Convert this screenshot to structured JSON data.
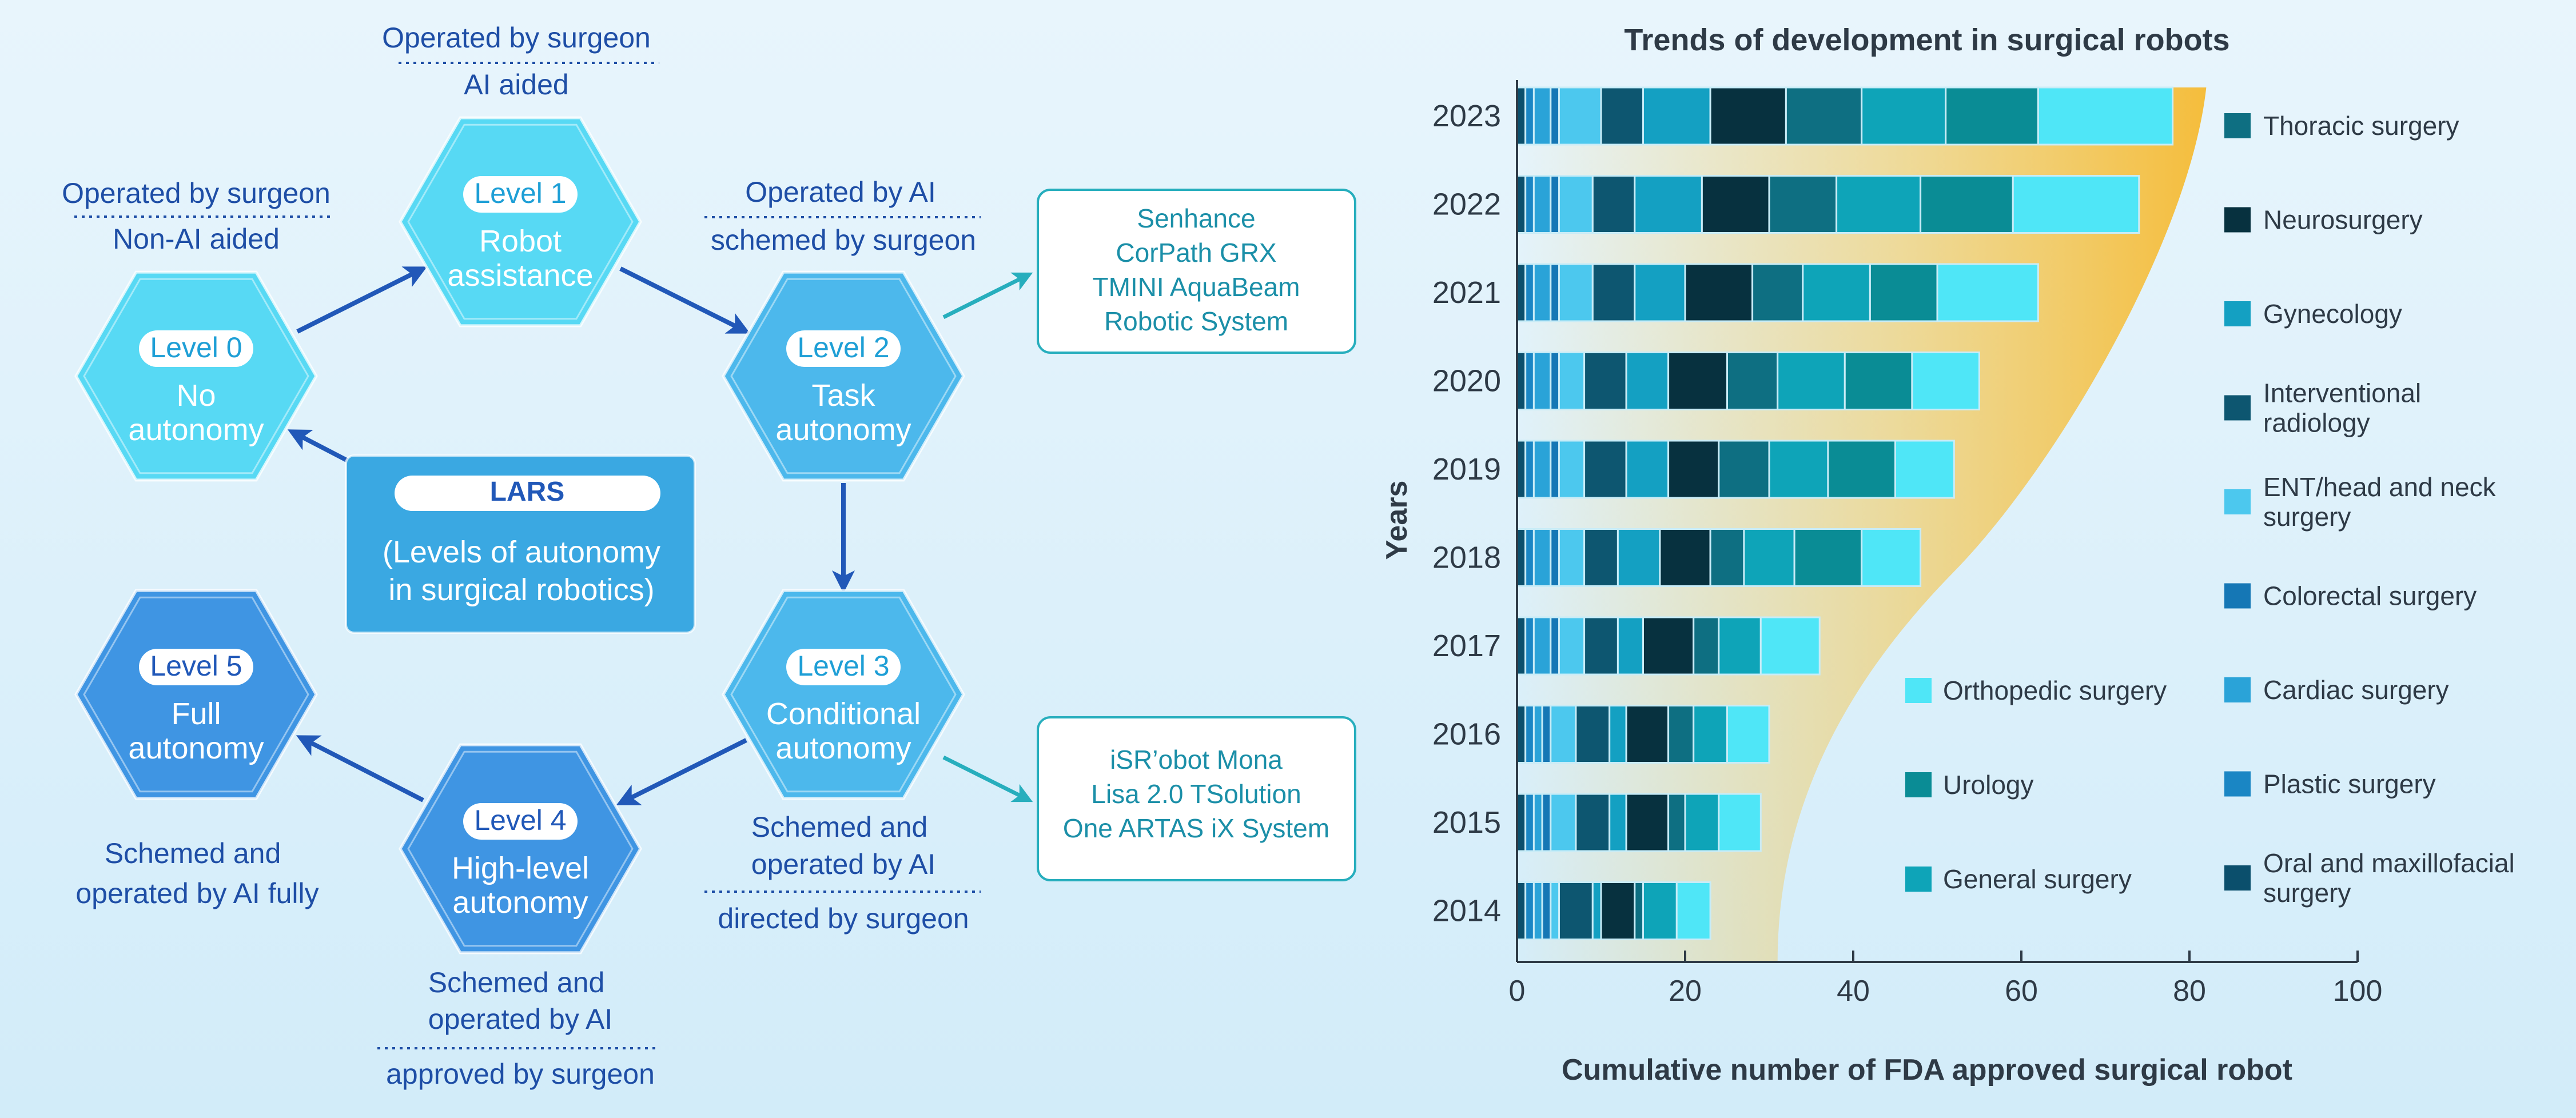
{
  "lars": {
    "title": "LARS",
    "subtitle_line1": "(Levels of autonomy",
    "subtitle_line2": "in surgical robotics)"
  },
  "levels": [
    {
      "badge": "Level 0",
      "line1": "No",
      "line2": "autonomy"
    },
    {
      "badge": "Level 1",
      "line1": "Robot",
      "line2": "assistance"
    },
    {
      "badge": "Level 2",
      "line1": "Task",
      "line2": "autonomy"
    },
    {
      "badge": "Level 3",
      "line1": "Conditional",
      "line2": "autonomy"
    },
    {
      "badge": "Level 4",
      "line1": "High-level",
      "line2": "autonomy"
    },
    {
      "badge": "Level 5",
      "line1": "Full",
      "line2": "autonomy"
    }
  ],
  "captions": {
    "level0": {
      "top": "Operated by surgeon",
      "bottom": "Non-AI aided"
    },
    "level1": {
      "top": "Operated by surgeon",
      "bottom": "AI aided"
    },
    "level2": {
      "top": "Operated by AI",
      "bottom": "schemed by surgeon"
    },
    "level3": {
      "top1": "Schemed and",
      "top2": "operated by AI",
      "bottom": "directed by surgeon"
    },
    "level4": {
      "top1": "Schemed and",
      "top2": "operated by AI",
      "bottom": "approved by surgeon"
    },
    "level5": {
      "line1": "Schemed and",
      "line2": "operated by AI fully"
    }
  },
  "example_boxes": {
    "level2": [
      "Senhance",
      "CorPath GRX",
      "TMINI AquaBeam",
      "Robotic System"
    ],
    "level3": [
      "iSR’obot Mona",
      "Lisa 2.0 TSolution",
      "One ARTAS iX System"
    ]
  },
  "colors": {
    "hex_light": "#57d9f4",
    "hex_mid": "#4cb8ec",
    "hex_blue": "#3f95e3",
    "arrow": "#2158b8",
    "teal_arrow": "#27aebd",
    "lars_box": "#3aa8e2",
    "text_blue": "#1e4ea6",
    "box_text": "#1b8fa8",
    "band": "#f5c04a"
  },
  "chart_data": {
    "type": "bar",
    "orientation": "horizontal",
    "stacked": true,
    "title": "Trends of development in surgical robots",
    "xlabel": "Cumulative number of FDA approved surgical robot",
    "ylabel": "Years",
    "xlim": [
      0,
      100
    ],
    "xticks": [
      0,
      20,
      40,
      60,
      80,
      100
    ],
    "categories": [
      "2023",
      "2022",
      "2021",
      "2020",
      "2019",
      "2018",
      "2017",
      "2016",
      "2015",
      "2014"
    ],
    "series": [
      {
        "name": "Oral and maxillofacial surgery",
        "color": "#0b4f6c",
        "values": [
          1,
          1,
          1,
          1,
          1,
          1,
          1,
          1,
          1,
          1
        ]
      },
      {
        "name": "Plastic surgery",
        "color": "#1a86c4",
        "values": [
          1,
          1,
          1,
          1,
          1,
          1,
          1,
          1,
          1,
          1
        ]
      },
      {
        "name": "Cardiac surgery",
        "color": "#2aa3d8",
        "values": [
          2,
          2,
          2,
          2,
          2,
          2,
          2,
          1,
          1,
          1
        ]
      },
      {
        "name": "Colorectal surgery",
        "color": "#1577b5",
        "values": [
          1,
          1,
          1,
          1,
          1,
          1,
          1,
          1,
          1,
          1
        ]
      },
      {
        "name": "ENT/head and neck surgery",
        "color": "#4cc8ee",
        "values": [
          5,
          4,
          4,
          3,
          3,
          3,
          3,
          3,
          3,
          1
        ]
      },
      {
        "name": "Interventional radiology",
        "color": "#0d5670",
        "values": [
          5,
          5,
          5,
          5,
          5,
          4,
          4,
          4,
          4,
          4
        ]
      },
      {
        "name": "Gynecology",
        "color": "#14a0c2",
        "values": [
          8,
          8,
          6,
          5,
          5,
          5,
          3,
          2,
          2,
          1
        ]
      },
      {
        "name": "Neurosurgery",
        "color": "#07313f",
        "values": [
          9,
          8,
          8,
          7,
          6,
          6,
          6,
          5,
          5,
          4
        ]
      },
      {
        "name": "Thoracic surgery",
        "color": "#0e6f82",
        "values": [
          9,
          8,
          6,
          6,
          6,
          4,
          3,
          3,
          2,
          1
        ]
      },
      {
        "name": "General surgery",
        "color": "#0ea4b8",
        "values": [
          10,
          10,
          8,
          8,
          7,
          6,
          5,
          4,
          4,
          4
        ]
      },
      {
        "name": "Urology",
        "color": "#0a8c95",
        "values": [
          11,
          11,
          8,
          8,
          8,
          8,
          0,
          0,
          0,
          0
        ]
      },
      {
        "name": "Orthopedic surgery",
        "color": "#4fe6f7",
        "values": [
          16,
          15,
          12,
          8,
          7,
          7,
          7,
          5,
          5,
          4
        ]
      }
    ],
    "legend_right": [
      "Thoracic surgery",
      "Neurosurgery",
      "Gynecology",
      "Interventional radiology",
      "ENT/head and neck surgery",
      "Colorectal surgery",
      "Cardiac surgery",
      "Plastic surgery",
      "Oral and maxillofacial surgery"
    ],
    "legend_left": [
      "Orthopedic surgery",
      "Urology",
      "General surgery"
    ],
    "legend_right_lines": [
      [
        "Thoracic surgery"
      ],
      [
        "Neurosurgery"
      ],
      [
        "Gynecology"
      ],
      [
        "Interventional",
        "radiology"
      ],
      [
        "ENT/head and neck",
        "surgery"
      ],
      [
        "Colorectal surgery"
      ],
      [
        "Cardiac surgery"
      ],
      [
        "Plastic surgery"
      ],
      [
        "Oral and maxillofacial",
        "surgery"
      ]
    ]
  }
}
